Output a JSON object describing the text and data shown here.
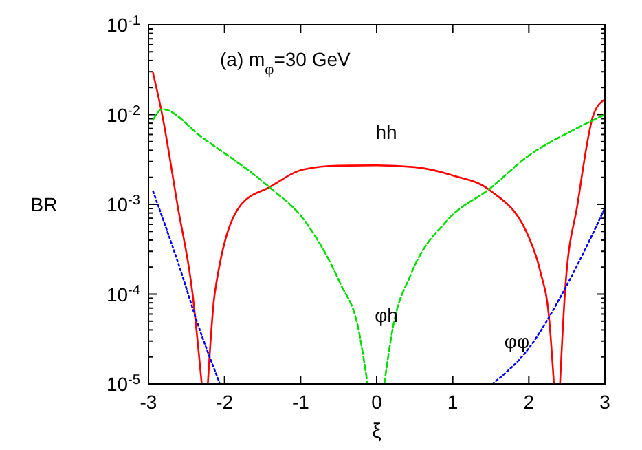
{
  "chart_data": {
    "type": "line",
    "xlabel": "ξ",
    "ylabel": "BR",
    "log": "y",
    "grid": false,
    "xlim": [
      -3,
      3
    ],
    "xticks": [
      -3,
      -2,
      -1,
      0,
      1,
      2,
      3
    ],
    "ylim": [
      1e-05,
      0.1
    ],
    "yticks": [
      {
        "value": 1e-05,
        "label": "10$^{-5}$"
      },
      {
        "value": 2e-05,
        "label": null
      },
      {
        "value": 3e-05,
        "label": null
      },
      {
        "value": 4e-05,
        "label": null
      },
      {
        "value": 5e-05,
        "label": null
      },
      {
        "value": 6e-05,
        "label": null
      },
      {
        "value": 7e-05,
        "label": null
      },
      {
        "value": 8e-05,
        "label": null
      },
      {
        "value": 9e-05,
        "label": null
      },
      {
        "value": 0.0001,
        "label": "10$^{-4}$"
      },
      {
        "value": 0.0002,
        "label": null
      },
      {
        "value": 0.0003,
        "label": null
      },
      {
        "value": 0.0004,
        "label": null
      },
      {
        "value": 0.0005,
        "label": null
      },
      {
        "value": 0.0006,
        "label": null
      },
      {
        "value": 0.0007,
        "label": null
      },
      {
        "value": 0.0008,
        "label": null
      },
      {
        "value": 0.0009,
        "label": null
      },
      {
        "value": 0.001,
        "label": "10$^{-3}$"
      },
      {
        "value": 0.002,
        "label": null
      },
      {
        "value": 0.003,
        "label": null
      },
      {
        "value": 0.004,
        "label": null
      },
      {
        "value": 0.005,
        "label": null
      },
      {
        "value": 0.006,
        "label": null
      },
      {
        "value": 0.007,
        "label": null
      },
      {
        "value": 0.008,
        "label": null
      },
      {
        "value": 0.009,
        "label": null
      },
      {
        "value": 0.01,
        "label": "10$^{-2}$"
      },
      {
        "value": 0.02,
        "label": null
      },
      {
        "value": 0.03,
        "label": null
      },
      {
        "value": 0.04,
        "label": null
      },
      {
        "value": 0.05,
        "label": null
      },
      {
        "value": 0.06,
        "label": null
      },
      {
        "value": 0.07,
        "label": null
      },
      {
        "value": 0.08,
        "label": null
      },
      {
        "value": 0.09,
        "label": null
      },
      {
        "value": 0.1,
        "label": "10$^{-1}$"
      }
    ],
    "annotations": [
      "(a) m$_{φ}$=30 GeV"
    ],
    "series": [
      {
        "name": "hh",
        "color": "#ff0000",
        "line_style": "solid",
        "x": [
          -2.94,
          -2.82,
          -2.62,
          -2.42,
          -2.3,
          null,
          -2.22,
          -2.13,
          -1.78,
          -1.41,
          -0.96,
          -0.5,
          0,
          0.5,
          1.0,
          1.48,
          2.0,
          2.15,
          2.27,
          2.33,
          null,
          2.41,
          2.48,
          2.64,
          2.85,
          3.0
        ],
        "values": [
          0.029,
          0.01,
          0.001,
          0.0001,
          1e-05,
          null,
          1e-05,
          0.0001,
          0.001,
          0.00155,
          0.00245,
          0.0027,
          0.00272,
          0.0026,
          0.0021,
          0.00145,
          0.00043,
          0.00018,
          5e-05,
          1e-05,
          null,
          1e-05,
          0.00012,
          0.001,
          0.01,
          0.0148
        ]
      },
      {
        "name": "φh",
        "color": "#00dd00",
        "line_style": "dashed",
        "x": [
          -2.94,
          -2.82,
          -2.3,
          -1.41,
          -0.96,
          -0.48,
          -0.24,
          -0.12,
          null,
          0.1,
          0.21,
          0.45,
          0.94,
          1.48,
          2.0,
          2.52,
          3.0
        ],
        "values": [
          0.0087,
          0.0115,
          0.0056,
          0.00155,
          0.00068,
          0.000132,
          4.1e-05,
          1e-05,
          null,
          1e-05,
          4.1e-05,
          0.000166,
          0.00068,
          0.00148,
          0.0035,
          0.0063,
          0.01
        ]
      },
      {
        "name": "φφ",
        "color": "#0000ff",
        "line_style": "dotted",
        "x": [
          -2.94,
          -2.6,
          -2.33,
          -2.06,
          null,
          1.52,
          2.0,
          2.48,
          3.0
        ],
        "values": [
          0.0014,
          0.00021,
          4.1e-05,
          1e-05,
          null,
          1e-05,
          2.5e-05,
          0.000117,
          0.00091
        ]
      }
    ]
  }
}
